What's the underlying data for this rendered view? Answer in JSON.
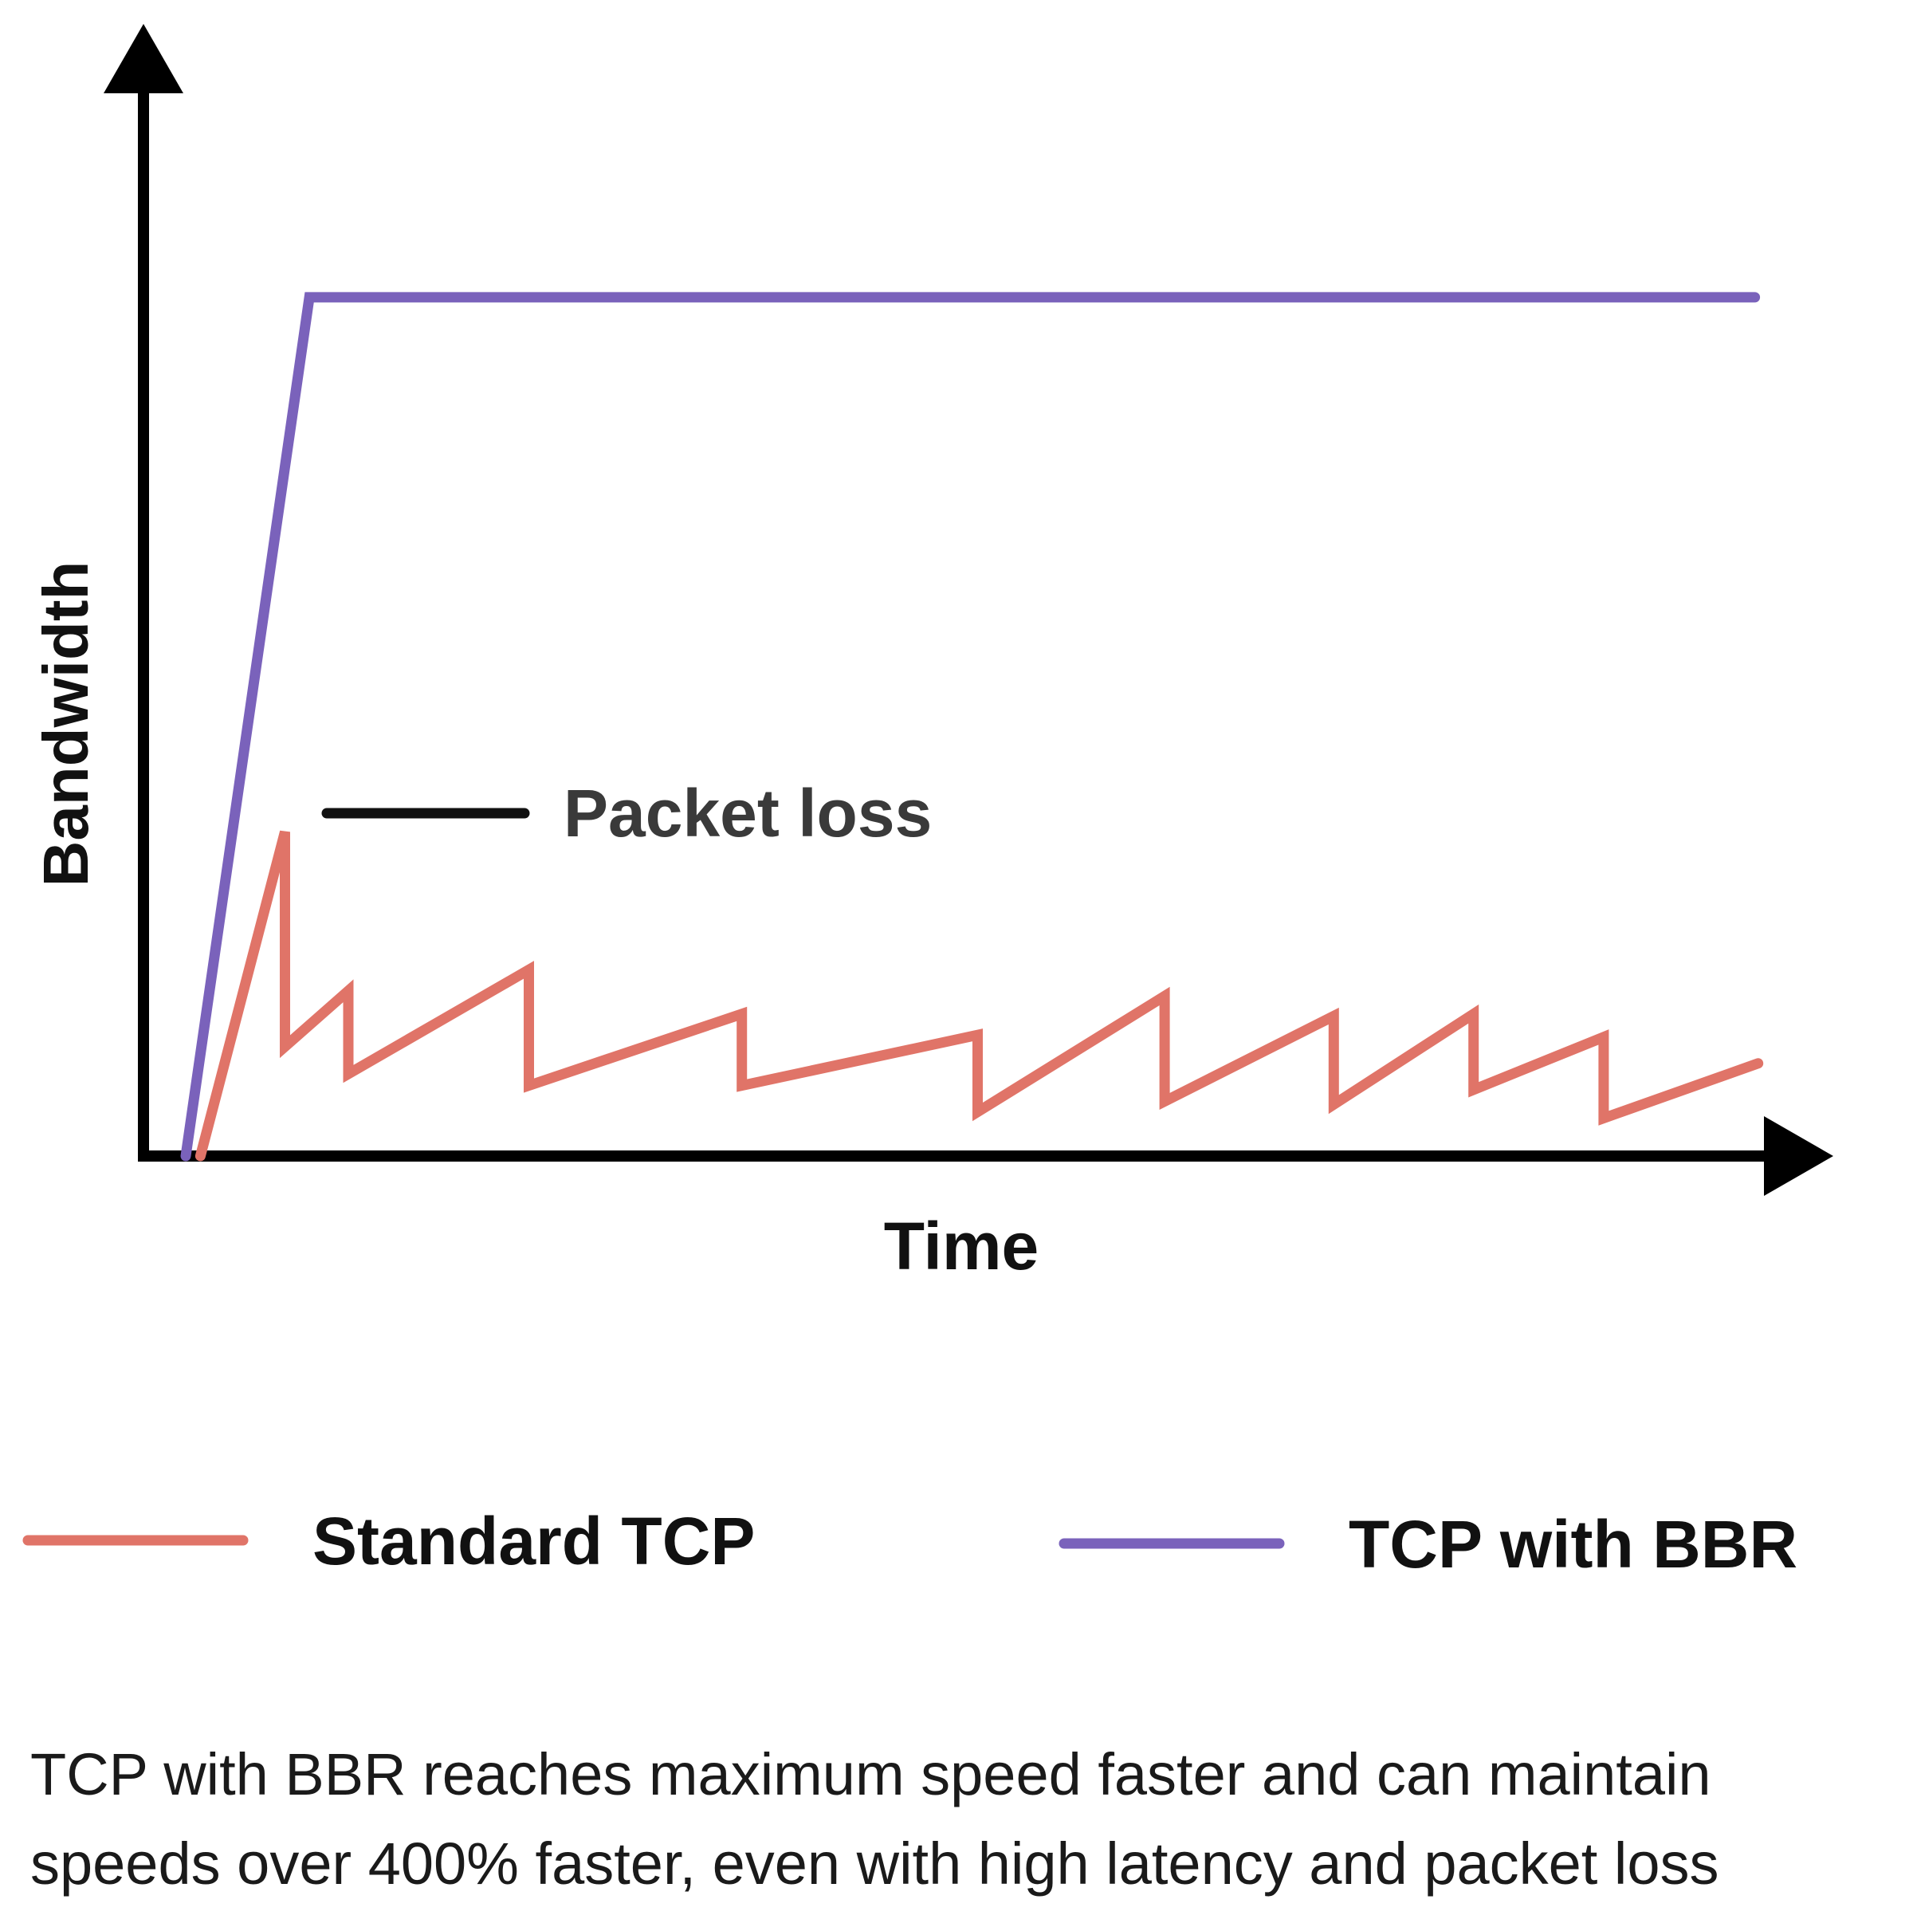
{
  "chart_data": {
    "type": "line",
    "xlabel": "Time",
    "ylabel": "Bandwidth",
    "xlim": [
      0,
      100
    ],
    "ylim": [
      0,
      100
    ],
    "grid": false,
    "legend_position": "bottom",
    "annotation": {
      "text": "Packet loss"
    },
    "series": [
      {
        "name": "Standard TCP",
        "color": "#e07468",
        "points": [
          [
            3.5,
            0
          ],
          [
            8.7,
            30.8
          ],
          [
            8.7,
            10.4
          ],
          [
            12.6,
            15.7
          ],
          [
            12.6,
            7.8
          ],
          [
            23.7,
            17.7
          ],
          [
            23.7,
            6.7
          ],
          [
            36.8,
            13.5
          ],
          [
            36.8,
            6.7
          ],
          [
            51.3,
            11.5
          ],
          [
            51.3,
            4.2
          ],
          [
            62.8,
            15.2
          ],
          [
            62.8,
            5.2
          ],
          [
            73.2,
            13.3
          ],
          [
            73.2,
            4.9
          ],
          [
            81.8,
            13.5
          ],
          [
            81.8,
            6.3
          ],
          [
            89.8,
            11.3
          ],
          [
            89.8,
            3.6
          ],
          [
            99.3,
            8.8
          ]
        ]
      },
      {
        "name": "TCP with BBR",
        "color": "#7a62bb",
        "points": [
          [
            2.6,
            0
          ],
          [
            10.2,
            81.6
          ],
          [
            99.1,
            81.6
          ]
        ]
      }
    ]
  },
  "legend": {
    "items": [
      {
        "label": "Standard TCP",
        "color": "#e07468"
      },
      {
        "label": "TCP with BBR",
        "color": "#7a62bb"
      }
    ]
  },
  "caption": {
    "line1": "TCP with BBR reaches maximum speed faster and can maintain",
    "line2": "speeds over 400% faster, even with high latency and packet loss"
  },
  "colors": {
    "axis": "#000000",
    "annotation_marker": "#111111"
  }
}
